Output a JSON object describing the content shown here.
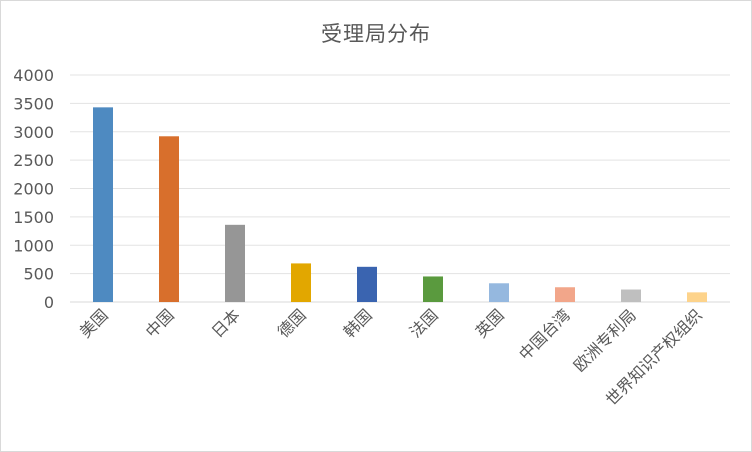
{
  "chart_data": {
    "type": "bar",
    "title": "受理局分布",
    "xlabel": "",
    "ylabel": "",
    "categories": [
      "美国",
      "中国",
      "日本",
      "德国",
      "韩国",
      "法国",
      "英国",
      "中国台湾",
      "欧洲专利局",
      "世界知识产权组织"
    ],
    "values": [
      3430,
      2920,
      1360,
      680,
      620,
      450,
      330,
      260,
      220,
      170
    ],
    "colors": [
      "#4e8ac1",
      "#d86f2c",
      "#969696",
      "#e2a700",
      "#3a64b0",
      "#5a9a3e",
      "#95b8df",
      "#f2a68a",
      "#bfbfbf",
      "#fdd38b"
    ],
    "ylim": [
      0,
      4000
    ],
    "yticks": [
      0,
      500,
      1000,
      1500,
      2000,
      2500,
      3000,
      3500,
      4000
    ],
    "grid": true,
    "legend": "none"
  }
}
